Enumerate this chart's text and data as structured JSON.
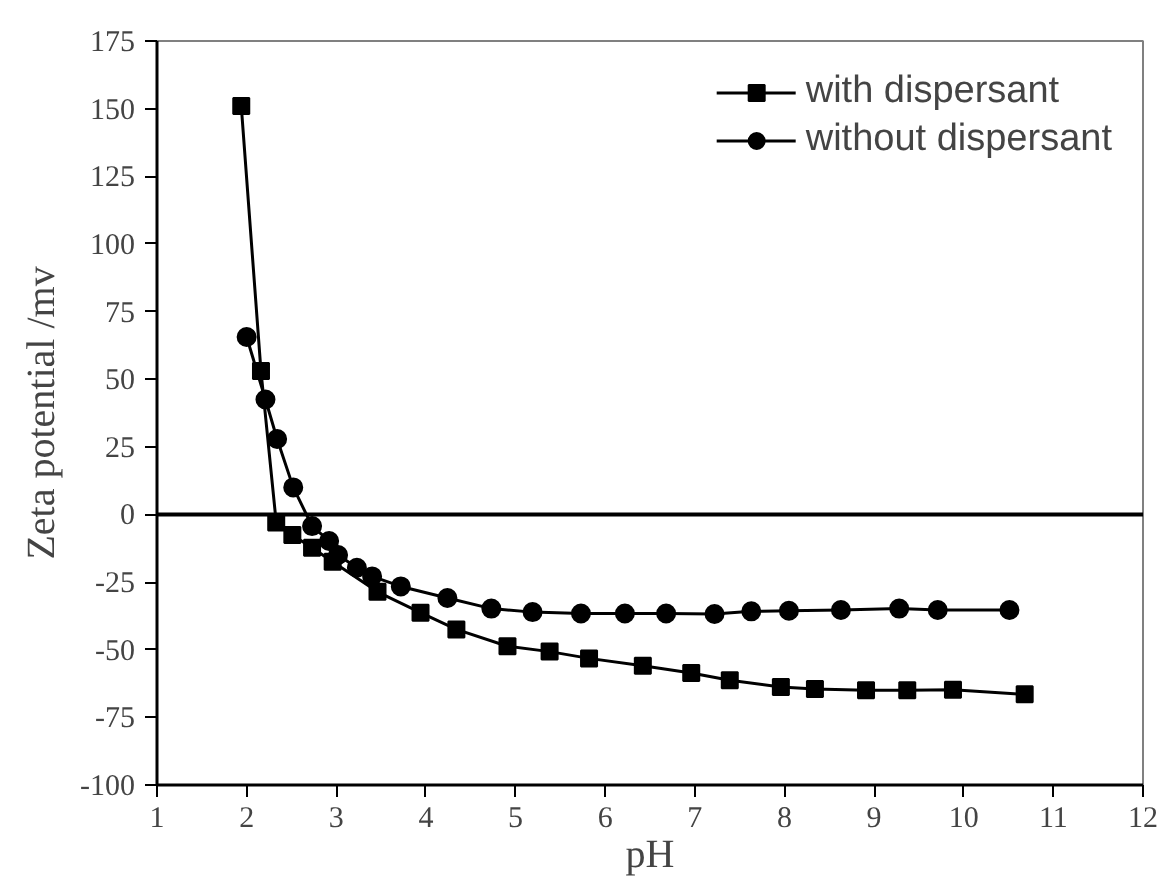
{
  "chart_data": {
    "type": "line",
    "xlabel": "pH",
    "ylabel": "Zeta potential /mv",
    "series": [
      {
        "name": "with dispersant",
        "color": "#000000",
        "marker": "square",
        "x": [
          1.94,
          2.16,
          2.33,
          2.51,
          2.73,
          2.96,
          3.46,
          3.94,
          4.34,
          4.91,
          5.38,
          5.82,
          6.42,
          6.96,
          7.39,
          7.96,
          8.34,
          8.91,
          9.37,
          9.88,
          10.68
        ],
        "values": [
          151,
          53,
          -3,
          -7.6,
          -12.3,
          -17.5,
          -28.6,
          -36.3,
          -42.5,
          -48.7,
          -50.7,
          -53.2,
          -55.9,
          -58.6,
          -61.3,
          -63.8,
          -64.5,
          -65,
          -65,
          -64.8,
          -66.5
        ]
      },
      {
        "name": "without dispersant",
        "color": "#000000",
        "marker": "circle",
        "x": [
          2.0,
          2.21,
          2.34,
          2.52,
          2.73,
          2.92,
          3.02,
          3.23,
          3.4,
          3.72,
          4.24,
          4.73,
          5.19,
          5.73,
          6.22,
          6.68,
          7.22,
          7.63,
          8.05,
          8.63,
          9.28,
          9.71,
          10.51
        ],
        "values": [
          65.6,
          42.5,
          27.9,
          10,
          -4.3,
          -9.8,
          -15,
          -19.7,
          -22.9,
          -26.6,
          -30.9,
          -34.8,
          -36.1,
          -36.6,
          -36.6,
          -36.6,
          -36.8,
          -35.8,
          -35.6,
          -35.3,
          -34.8,
          -35.3,
          -35.3
        ]
      }
    ],
    "xlim": [
      1,
      12
    ],
    "xticks": [
      1,
      2,
      3,
      4,
      5,
      6,
      7,
      8,
      9,
      10,
      11,
      12
    ],
    "ylim": [
      -100,
      175
    ],
    "yticks": [
      -100,
      -75,
      -50,
      -25,
      0,
      25,
      50,
      75,
      100,
      125,
      150,
      175
    ],
    "ref_lines": [
      {
        "axis": "y",
        "value": 0,
        "color": "#000000"
      }
    ],
    "grid": false,
    "legend": "top right",
    "line_style": "solid"
  }
}
